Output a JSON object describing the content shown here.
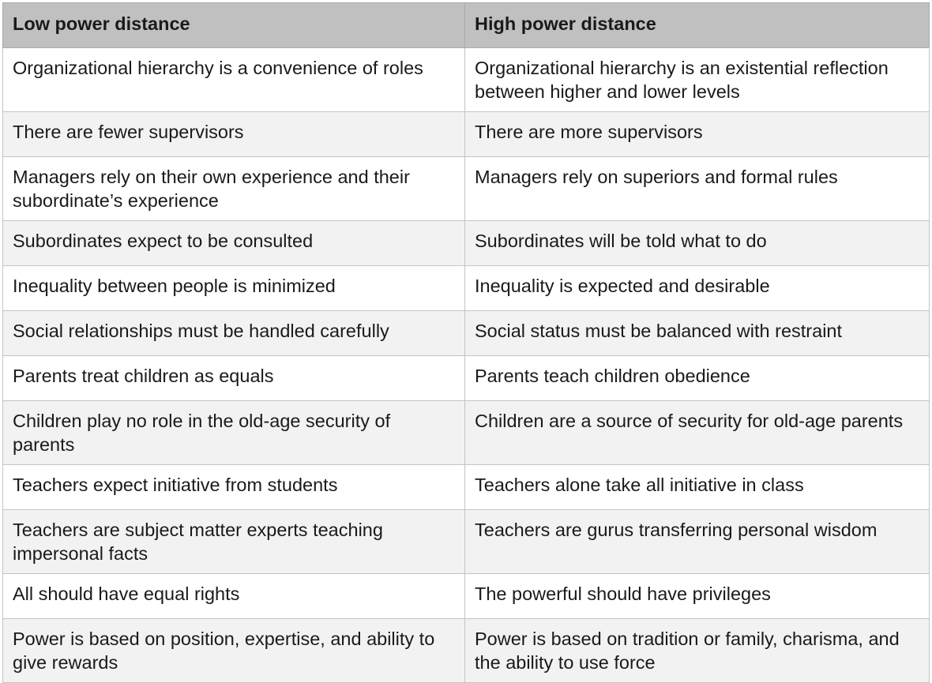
{
  "table": {
    "headers": [
      "Low power distance",
      "High power distance"
    ],
    "rows": [
      [
        "Organizational hierarchy is a convenience of roles",
        "Organizational hierarchy is an existential reflection between higher and lower levels"
      ],
      [
        "There are fewer supervisors",
        "There are more supervisors"
      ],
      [
        "Managers rely on their own experience and their subordinate’s experience",
        "Managers rely on superiors and formal rules"
      ],
      [
        "Subordinates expect to be consulted",
        "Subordinates will be told what to do"
      ],
      [
        "Inequality between people is minimized",
        "Inequality is expected and desirable"
      ],
      [
        "Social relationships must be handled carefully",
        "Social status must be balanced with restraint"
      ],
      [
        "Parents treat children as equals",
        "Parents teach children obedience"
      ],
      [
        "Children play no role in the old-age security of parents",
        "Children are a source of security for old-age parents"
      ],
      [
        "Teachers expect initiative from students",
        "Teachers alone take all initiative in class"
      ],
      [
        "Teachers are subject matter experts teaching impersonal facts",
        "Teachers are gurus transferring personal wisdom"
      ],
      [
        "All should have equal rights",
        "The powerful should have privileges"
      ],
      [
        "Power is based on position, expertise, and ability to give rewards",
        "Power is based on tradition or family, charisma, and the ability to use force"
      ]
    ]
  }
}
